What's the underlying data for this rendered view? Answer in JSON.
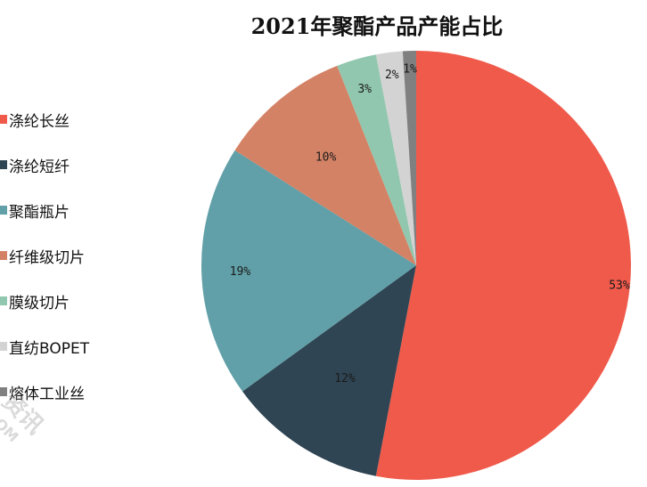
{
  "chart_data": {
    "type": "pie",
    "title": "2021年聚酯产品产能占比",
    "categories": [
      "涤纶长丝",
      "涤纶短纤",
      "聚酯瓶片",
      "纤维级切片",
      "膜级切片",
      "直纺BOPET",
      "熔体工业丝"
    ],
    "values": [
      53,
      12,
      19,
      10,
      3,
      2,
      1
    ],
    "labels": [
      "53%",
      "12%",
      "19%",
      "10%",
      "3%",
      "2%",
      "1%"
    ],
    "unit": "%",
    "colors": [
      "#F05A4B",
      "#2F4553",
      "#61A0A8",
      "#D48265",
      "#91C7AE",
      "#D3D3D3",
      "#808080"
    ],
    "start_angle": "top, clockwise",
    "legend_position": "left"
  },
  "legend": {
    "items": [
      {
        "label": "涤纶长丝",
        "color": "#F05A4B"
      },
      {
        "label": "涤纶短纤",
        "color": "#2F4553"
      },
      {
        "label": "聚酯瓶片",
        "color": "#61A0A8"
      },
      {
        "label": "纤维级切片",
        "color": "#D48265"
      },
      {
        "label": "膜级切片",
        "color": "#91C7AE"
      },
      {
        "label": "直纺BOPET",
        "color": "#D3D3D3"
      },
      {
        "label": "熔体工业丝",
        "color": "#808080"
      }
    ]
  },
  "watermark": {
    "line1": "资讯",
    "line2": "COM"
  }
}
